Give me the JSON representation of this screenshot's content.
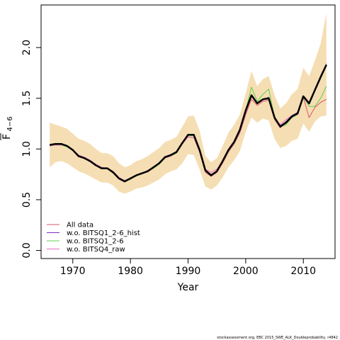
{
  "chart_data": {
    "type": "line",
    "xlabel": "Year",
    "ylabel_main": "F",
    "ylabel_sub": "4−6",
    "xlim": [
      1964.5,
      2015.5
    ],
    "ylim": [
      -0.08,
      2.42
    ],
    "xticks": [
      1970,
      1980,
      1990,
      2000,
      2010
    ],
    "xtick_labels": [
      "1970",
      "1980",
      "1990",
      "2000",
      "2010"
    ],
    "yticks": [
      0.0,
      0.5,
      1.0,
      1.5,
      2.0
    ],
    "ytick_labels": [
      "0.0",
      "0.5",
      "1.0",
      "1.5",
      "2.0"
    ],
    "grid": false,
    "legend_position": "bottom-left",
    "x": [
      1966,
      1967,
      1968,
      1969,
      1970,
      1971,
      1972,
      1973,
      1974,
      1975,
      1976,
      1977,
      1978,
      1979,
      1980,
      1981,
      1982,
      1983,
      1984,
      1985,
      1986,
      1987,
      1988,
      1989,
      1990,
      1991,
      1992,
      1993,
      1994,
      1995,
      1996,
      1997,
      1998,
      1999,
      2000,
      2001,
      2002,
      2003,
      2004,
      2005,
      2006,
      2007,
      2008,
      2009,
      2010,
      2011,
      2012,
      2013,
      2014
    ],
    "band": {
      "color": "#F5DEB3",
      "upper": [
        1.26,
        1.24,
        1.22,
        1.2,
        1.15,
        1.1,
        1.08,
        1.05,
        1.0,
        0.96,
        0.96,
        0.93,
        0.86,
        0.82,
        0.84,
        0.88,
        0.9,
        0.93,
        0.97,
        1.01,
        1.07,
        1.09,
        1.12,
        1.22,
        1.32,
        1.33,
        1.18,
        0.93,
        0.87,
        0.91,
        1.03,
        1.16,
        1.24,
        1.34,
        1.55,
        1.77,
        1.62,
        1.69,
        1.72,
        1.53,
        1.4,
        1.45,
        1.54,
        1.59,
        1.8,
        1.72,
        1.87,
        2.04,
        2.34
      ],
      "lower": [
        0.82,
        0.87,
        0.88,
        0.86,
        0.82,
        0.78,
        0.76,
        0.73,
        0.7,
        0.67,
        0.67,
        0.64,
        0.58,
        0.56,
        0.58,
        0.61,
        0.62,
        0.64,
        0.67,
        0.7,
        0.75,
        0.78,
        0.8,
        0.86,
        0.95,
        0.94,
        0.8,
        0.63,
        0.6,
        0.64,
        0.72,
        0.82,
        0.89,
        0.98,
        1.17,
        1.31,
        1.26,
        1.3,
        1.28,
        1.1,
        1.01,
        1.03,
        1.08,
        1.1,
        1.25,
        1.17,
        1.27,
        1.32,
        1.33
      ]
    },
    "series": [
      {
        "name": "All data",
        "color": "#DF536B",
        "width": 1,
        "values": [
          1.03,
          1.04,
          1.04,
          1.03,
          0.99,
          0.93,
          0.91,
          0.88,
          0.84,
          0.81,
          0.81,
          0.77,
          0.71,
          0.68,
          0.7,
          0.74,
          0.76,
          0.78,
          0.81,
          0.85,
          0.91,
          0.93,
          0.96,
          1.05,
          1.12,
          1.11,
          0.97,
          0.77,
          0.73,
          0.77,
          0.86,
          0.97,
          1.05,
          1.16,
          1.34,
          1.49,
          1.43,
          1.47,
          1.48,
          1.29,
          1.21,
          1.27,
          1.31,
          1.34,
          1.51,
          1.31,
          1.41,
          1.46,
          1.49
        ]
      },
      {
        "name": "w.o. BITSQ1_2-6_hist",
        "color": "#7A2FBF",
        "width": 1,
        "values": [
          1.04,
          1.05,
          1.05,
          1.03,
          0.99,
          0.93,
          0.91,
          0.88,
          0.84,
          0.81,
          0.81,
          0.77,
          0.71,
          0.68,
          0.71,
          0.74,
          0.76,
          0.78,
          0.82,
          0.86,
          0.92,
          0.94,
          0.97,
          1.06,
          1.14,
          1.14,
          0.99,
          0.79,
          0.75,
          0.78,
          0.88,
          0.99,
          1.07,
          1.19,
          1.38,
          1.52,
          1.45,
          1.49,
          1.51,
          1.31,
          1.23,
          1.27,
          1.33,
          1.36,
          1.52,
          1.45,
          1.58,
          1.72,
          1.84
        ]
      },
      {
        "name": "w.o. BITSQ1_2-6",
        "color": "#61D04F",
        "width": 1,
        "values": [
          1.03,
          1.04,
          1.04,
          1.02,
          0.99,
          0.93,
          0.91,
          0.88,
          0.84,
          0.81,
          0.81,
          0.77,
          0.71,
          0.68,
          0.7,
          0.74,
          0.76,
          0.78,
          0.81,
          0.85,
          0.91,
          0.93,
          0.96,
          1.05,
          1.13,
          1.13,
          0.98,
          0.78,
          0.74,
          0.78,
          0.87,
          0.98,
          1.06,
          1.18,
          1.38,
          1.61,
          1.47,
          1.54,
          1.59,
          1.31,
          1.22,
          1.24,
          1.31,
          1.34,
          1.52,
          1.42,
          1.42,
          1.5,
          1.62
        ]
      },
      {
        "name": "w.o. BITSQ4_raw",
        "color": "#E86BC8",
        "width": 1,
        "values": [
          1.03,
          1.04,
          1.04,
          1.03,
          0.99,
          0.94,
          0.92,
          0.89,
          0.85,
          0.82,
          0.81,
          0.78,
          0.72,
          0.69,
          0.71,
          0.74,
          0.76,
          0.79,
          0.82,
          0.86,
          0.91,
          0.93,
          0.97,
          1.05,
          1.12,
          1.11,
          0.98,
          0.8,
          0.77,
          0.8,
          0.88,
          0.98,
          1.06,
          1.17,
          1.36,
          1.52,
          1.46,
          1.49,
          1.49,
          1.3,
          1.24,
          1.29,
          1.33,
          1.34,
          1.51,
          1.44,
          1.57,
          1.72,
          1.83
        ]
      },
      {
        "name": "",
        "color": "#000000",
        "width": 2.5,
        "values": [
          1.04,
          1.05,
          1.05,
          1.03,
          0.99,
          0.93,
          0.91,
          0.88,
          0.84,
          0.81,
          0.81,
          0.77,
          0.71,
          0.68,
          0.71,
          0.74,
          0.76,
          0.78,
          0.82,
          0.86,
          0.92,
          0.94,
          0.97,
          1.06,
          1.14,
          1.14,
          0.99,
          0.79,
          0.74,
          0.78,
          0.88,
          0.99,
          1.07,
          1.19,
          1.38,
          1.53,
          1.45,
          1.49,
          1.5,
          1.31,
          1.22,
          1.26,
          1.32,
          1.35,
          1.52,
          1.45,
          1.58,
          1.71,
          1.83
        ]
      }
    ],
    "legend": [
      {
        "label": "All data",
        "color": "#DF536B"
      },
      {
        "label": "w.o. BITSQ1_2-6_hist",
        "color": "#7A2FBF"
      },
      {
        "label": "w.o. BITSQ1_2-6",
        "color": "#61D04F"
      },
      {
        "label": "w.o. BITSQ4_raw",
        "color": "#E86BC8"
      }
    ]
  },
  "footer": "stockassessment.org, EBC 2015_SWE_ALK_Doubleprobability, r4842"
}
